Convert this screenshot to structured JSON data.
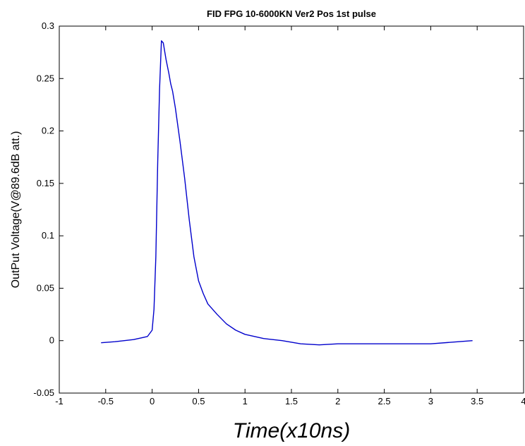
{
  "chart_data": {
    "type": "line",
    "title": "FID FPG 10-6000KN Ver2 Pos 1st pulse",
    "xlabel": "Time(x10ns)",
    "ylabel": "OutPut Voltage(V@89.6dB att.)",
    "xlim": [
      -1,
      4
    ],
    "ylim": [
      -0.05,
      0.3
    ],
    "xticks": [
      "-1",
      "-0.5",
      "0",
      "0.5",
      "1",
      "1.5",
      "2",
      "2.5",
      "3",
      "3.5",
      "4"
    ],
    "yticks": [
      "-0.05",
      "0",
      "0.05",
      "0.1",
      "0.15",
      "0.2",
      "0.25",
      "0.3"
    ],
    "grid": false,
    "series": [
      {
        "color": "#0000cc",
        "x": [
          -0.55,
          -0.4,
          -0.3,
          -0.2,
          -0.1,
          -0.05,
          0.0,
          0.02,
          0.04,
          0.06,
          0.08,
          0.1,
          0.12,
          0.15,
          0.18,
          0.2,
          0.22,
          0.25,
          0.3,
          0.35,
          0.4,
          0.45,
          0.5,
          0.55,
          0.6,
          0.7,
          0.8,
          0.9,
          1.0,
          1.2,
          1.4,
          1.6,
          1.8,
          2.0,
          2.5,
          3.0,
          3.3,
          3.45
        ],
        "y": [
          -0.002,
          -0.001,
          0.0,
          0.001,
          0.003,
          0.004,
          0.01,
          0.03,
          0.08,
          0.17,
          0.24,
          0.286,
          0.284,
          0.268,
          0.255,
          0.245,
          0.238,
          0.222,
          0.19,
          0.155,
          0.115,
          0.08,
          0.057,
          0.045,
          0.035,
          0.025,
          0.016,
          0.01,
          0.006,
          0.002,
          0.0,
          -0.003,
          -0.004,
          -0.003,
          -0.003,
          -0.003,
          -0.001,
          0.0
        ]
      }
    ]
  }
}
